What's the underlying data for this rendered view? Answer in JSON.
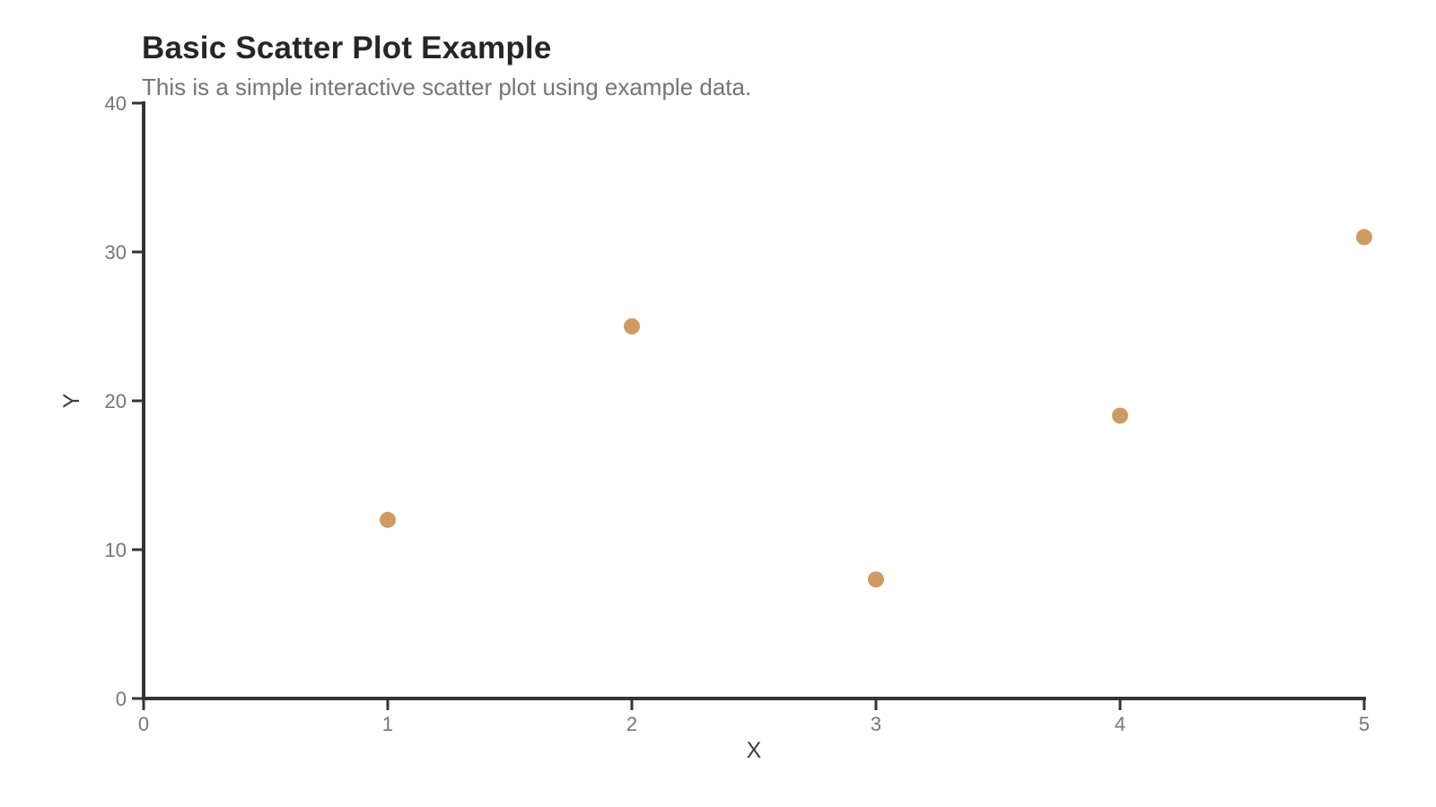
{
  "header": {
    "title": "Basic Scatter Plot Example",
    "subtitle": "This is a simple interactive scatter plot using example data."
  },
  "chart_data": {
    "type": "scatter",
    "title": "Basic Scatter Plot Example",
    "subtitle": "This is a simple interactive scatter plot using example data.",
    "x": [
      1,
      2,
      3,
      4,
      5
    ],
    "y": [
      12,
      25,
      8,
      19,
      31
    ],
    "points": [
      {
        "x": 1,
        "y": 12
      },
      {
        "x": 2,
        "y": 25
      },
      {
        "x": 3,
        "y": 8
      },
      {
        "x": 4,
        "y": 19
      },
      {
        "x": 5,
        "y": 31
      }
    ],
    "xlabel": "X",
    "ylabel": "Y",
    "xlim": [
      0,
      5
    ],
    "ylim": [
      0,
      40
    ],
    "x_ticks": [
      0,
      1,
      2,
      3,
      4,
      5
    ],
    "y_ticks": [
      0,
      10,
      20,
      30,
      40
    ],
    "grid": false,
    "legend": "none",
    "marker_color": "#CF9B62",
    "marker_radius": 9,
    "axis_color": "#343438",
    "tick_label_color": "#757575",
    "axis_label_color": "#3D3D3D",
    "background_color": "#FFFFFF"
  }
}
